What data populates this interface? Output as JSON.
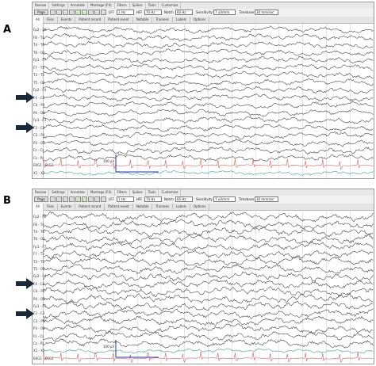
{
  "panels": [
    {
      "letter": "A",
      "menu_items": [
        "Review",
        "Settings",
        "Annotate",
        "Montage (F4)",
        "Filters",
        "Spikes",
        "Tools",
        "Customize"
      ],
      "tabs": [
        "All",
        "Files",
        "Events",
        "Patient record",
        "Patient event",
        "Notable",
        "Trainees",
        "Labels",
        "Options"
      ],
      "toolbar": {
        "first_button": "Page",
        "lff_label": "LFF",
        "lff_value": "1 Hz",
        "hff_label": "HFF",
        "hff_value": "70 Hz",
        "notch_label": "Notch",
        "notch_value": "60 Hz",
        "sensitivity_label": "Sensitivity",
        "sensitivity_value": "7 uV/mm",
        "timebase_label": "Timebase",
        "timebase_value": "30 mm/sec"
      },
      "channels": [
        "Fp2 - F8",
        "F8 - T4",
        "T4 - T6",
        "T6 - O2",
        "Fp1 - F7",
        "F7 - T3",
        "T3 - T5",
        "T5 - O1",
        "Fp2 - F4",
        "F4 - C4",
        "C4 - P4",
        "P4 - O2",
        "Fp1 - F3",
        "F3 - C3",
        "C3 - P3",
        "P3 - O1",
        "Fz - Cz",
        "Cz - Pz",
        "EKG1 - EKG2",
        "X1 - X2"
      ],
      "calibration_label": "100 μV",
      "arrow_channels": [
        9,
        13
      ]
    },
    {
      "letter": "B",
      "menu_items": [
        "Review",
        "Settings",
        "Annotate",
        "Montage (F4)",
        "Filters",
        "Spikes",
        "Tools",
        "Customize"
      ],
      "tabs": [
        "All",
        "Files",
        "Events",
        "Patient record",
        "Patient event",
        "Notable",
        "Trainees",
        "Labels",
        "Options"
      ],
      "toolbar": {
        "first_button": "Page",
        "lff_label": "LFF",
        "lff_value": "1 Hz",
        "hff_label": "HFF",
        "hff_value": "70 Hz",
        "notch_label": "Notch",
        "notch_value": "60 Hz",
        "sensitivity_label": "Sensitivity",
        "sensitivity_value": "7 uV/mm",
        "timebase_label": "Timebase",
        "timebase_value": "30 mm/sec"
      },
      "channels": [
        "Fp2 - F8",
        "F8 - T4",
        "T4 - T6",
        "T6 - O2",
        "Fp1 - F7",
        "F7 - T3",
        "T3 - T5",
        "T5 - O1",
        "Fp2 - F4",
        "F4 - C4",
        "C4 - P4",
        "P4 - O2",
        "Fp1 - F3",
        "F3 - C3",
        "C3 - P3",
        "P3 - O1",
        "Fz - Cz",
        "Cz - Pz",
        "X1 - X2",
        "EKG1 - EKG2"
      ],
      "calibration_label": "100 μV",
      "arrow_channels": [
        9,
        13
      ]
    }
  ],
  "colors": {
    "trace": "#3a3a3a",
    "ekg_trace": "#d9534f",
    "aux_trace_a": "#2e9e8f",
    "aux_trace_b1": "#4a3fb5",
    "aux_trace_b2": "#2e9e8f",
    "gridline": "#c9c9c9",
    "calibration": "#2233aa",
    "arrow": "#1b2a3a"
  }
}
